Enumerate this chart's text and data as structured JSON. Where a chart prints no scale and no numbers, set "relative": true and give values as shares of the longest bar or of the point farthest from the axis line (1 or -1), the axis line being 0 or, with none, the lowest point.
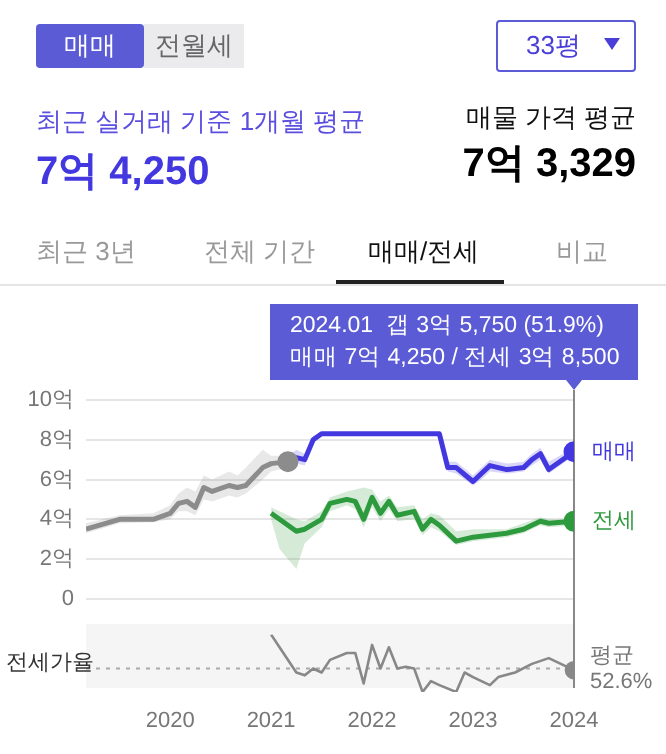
{
  "chart_data": [
    {
      "type": "other",
      "annotations": [
        "매매",
        "전월세",
        "33평",
        "최근 실거래 기준 1개월 평균",
        "7억 4,250",
        "매물 가격 평균",
        "7억 3,329",
        "최근 3년",
        "전체 기간",
        "매매/전세",
        "비교"
      ]
    },
    {
      "type": "line",
      "xlim": [
        "2019-03",
        "2024-01"
      ],
      "xticks": [
        "2020",
        "2021",
        "2022",
        "2023",
        "2024"
      ],
      "ylim": [
        0,
        10
      ],
      "yticks": [
        {
          "value": 10,
          "label": "10억"
        },
        {
          "value": 8,
          "label": "8억"
        },
        {
          "value": 6,
          "label": "6억"
        },
        {
          "value": 4,
          "label": "4억"
        },
        {
          "value": 2,
          "label": "2억"
        },
        0
      ],
      "grid": "y",
      "legend": false,
      "tick_labels": "y",
      "annotations": [
        "2024.01  갭 3억 5,750 (51.9%)",
        "매매 7억 4,250 / 전세 3억 8,500"
      ],
      "ref_lines": [
        {
          "axis": "x",
          "value": "2024-01",
          "color": "#888888"
        }
      ],
      "series": [
        {
          "color": "#8c8c8c",
          "x": [
            "2019-03",
            "2019-07",
            "2019-11",
            "2020-01",
            "2020-02",
            "2020-03",
            "2020-04",
            "2020-05",
            "2020-06",
            "2020-08",
            "2020-09",
            "2020-10",
            "2020-12",
            "2021-01",
            "2021-03"
          ],
          "values": [
            3.5,
            4.0,
            4.0,
            4.3,
            4.8,
            4.9,
            4.6,
            5.6,
            5.4,
            5.7,
            5.6,
            5.7,
            6.6,
            6.8,
            6.9
          ],
          "lower": [
            3.3,
            3.8,
            3.85,
            4.0,
            4.4,
            4.4,
            4.2,
            5.0,
            4.9,
            5.2,
            5.1,
            5.3,
            6.0,
            6.4,
            6.6
          ],
          "upper": [
            3.8,
            4.2,
            4.3,
            4.7,
            5.3,
            5.6,
            5.4,
            6.2,
            6.0,
            6.4,
            6.2,
            6.6,
            7.5,
            7.2,
            7.2
          ]
        },
        {
          "name": "매매",
          "color": "#4338e0",
          "x": [
            "2021-03",
            "2021-04",
            "2021-05",
            "2021-06",
            "2021-07",
            "2022-09",
            "2022-10",
            "2022-11",
            "2023-01",
            "2023-02",
            "2023-03",
            "2023-05",
            "2023-07",
            "2023-08",
            "2023-09",
            "2023-10",
            "2024-01"
          ],
          "values": [
            6.9,
            7.1,
            7.0,
            8.0,
            8.3,
            8.3,
            6.6,
            6.6,
            5.9,
            6.3,
            6.7,
            6.5,
            6.6,
            7.0,
            7.3,
            6.5,
            7.4
          ],
          "lower": [
            6.6,
            6.8,
            6.7,
            7.8,
            8.3,
            8.3,
            6.4,
            6.3,
            5.7,
            6.0,
            6.4,
            6.3,
            6.4,
            6.7,
            7.0,
            6.3,
            7.2
          ],
          "upper": [
            7.2,
            7.5,
            7.3,
            8.2,
            8.3,
            8.3,
            6.9,
            6.9,
            6.2,
            6.6,
            7.0,
            6.8,
            6.9,
            7.3,
            7.6,
            6.9,
            7.6
          ]
        },
        {
          "name": "전세",
          "color": "#2e9a3e",
          "x": [
            "2021-01",
            "2021-02",
            "2021-04",
            "2021-05",
            "2021-07",
            "2021-08",
            "2021-10",
            "2021-11",
            "2021-12",
            "2022-01",
            "2022-02",
            "2022-03",
            "2022-04",
            "2022-06",
            "2022-07",
            "2022-08",
            "2022-09",
            "2022-11",
            "2023-01",
            "2023-03",
            "2023-05",
            "2023-07",
            "2023-09",
            "2023-10",
            "2024-01"
          ],
          "values": [
            4.3,
            4.0,
            3.4,
            3.5,
            4.0,
            4.8,
            5.0,
            4.9,
            4.0,
            5.1,
            4.3,
            4.9,
            4.2,
            4.4,
            3.5,
            4.0,
            3.7,
            2.9,
            3.1,
            3.2,
            3.3,
            3.5,
            3.9,
            3.8,
            3.9
          ],
          "lower": [
            4.0,
            2.5,
            1.5,
            2.8,
            3.6,
            4.4,
            4.7,
            4.5,
            3.6,
            4.6,
            3.9,
            4.5,
            3.9,
            4.0,
            3.2,
            3.6,
            3.4,
            2.7,
            2.9,
            3.0,
            3.1,
            3.3,
            3.7,
            3.6,
            3.7
          ],
          "upper": [
            4.6,
            4.4,
            4.0,
            3.9,
            4.4,
            5.1,
            5.4,
            5.5,
            5.6,
            5.5,
            4.9,
            5.2,
            4.6,
            4.7,
            4.0,
            4.3,
            4.2,
            3.4,
            3.5,
            3.5,
            3.5,
            3.8,
            4.1,
            4.0,
            4.0
          ]
        }
      ]
    },
    {
      "type": "line",
      "relative": true,
      "ylabel": "전세가율",
      "xlim": [
        "2019-03",
        "2024-01"
      ],
      "xticks": [
        "2020",
        "2021",
        "2022",
        "2023",
        "2024"
      ],
      "legend": false,
      "tick_labels": "x",
      "ref_lines": [
        {
          "axis": "x",
          "value": "2024-01",
          "color": "#888888"
        },
        {
          "axis": "y",
          "value": 0.41,
          "label": "평균 52.6%",
          "color": "#aaaaaa",
          "line_style": "dotted"
        }
      ],
      "series": [
        {
          "color": "#888888",
          "x": [
            "2021-01",
            "2021-02",
            "2021-04",
            "2021-05",
            "2021-06",
            "2021-07",
            "2021-08",
            "2021-10",
            "2021-11",
            "2021-12",
            "2022-01",
            "2022-02",
            "2022-03",
            "2022-04",
            "2022-05",
            "2022-06",
            "2022-07",
            "2022-08",
            "2022-09",
            "2022-11",
            "2022-12",
            "2023-01",
            "2023-03",
            "2023-04",
            "2023-06",
            "2023-08",
            "2023-10",
            "2024-01"
          ],
          "values": [
            1,
            0.78,
            0.34,
            0.29,
            0.41,
            0.34,
            0.56,
            0.68,
            0.68,
            0.15,
            0.82,
            0.41,
            0.78,
            0.41,
            0.44,
            0.41,
            0,
            0.19,
            0.12,
            0,
            0.34,
            0.26,
            0.12,
            0.26,
            0.34,
            0.49,
            0.59,
            0.38
          ]
        }
      ]
    }
  ]
}
